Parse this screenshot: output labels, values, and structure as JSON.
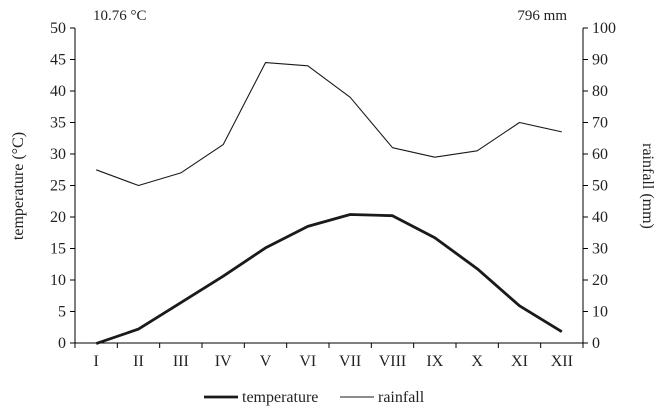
{
  "chart_data": {
    "type": "line",
    "categories": [
      "I",
      "II",
      "III",
      "IV",
      "V",
      "VI",
      "VII",
      "VIII",
      "IX",
      "X",
      "XI",
      "XII"
    ],
    "series": [
      {
        "name": "temperature",
        "axis": "left",
        "color": "#1a1a1a",
        "values": [
          -0.1,
          2.2,
          6.4,
          10.6,
          15.1,
          18.5,
          20.4,
          20.2,
          16.7,
          11.8,
          5.9,
          1.8
        ]
      },
      {
        "name": "rainfall",
        "axis": "right",
        "color": "#1a1a1a",
        "values": [
          55,
          50,
          54,
          63,
          89,
          88,
          78,
          62,
          59,
          61,
          70,
          67
        ]
      }
    ],
    "ylabel": "temperature (°C)",
    "y2label": "rainfall (mm)",
    "ylim": [
      0,
      50
    ],
    "y2lim": [
      0,
      100
    ],
    "yticks": [
      0,
      5,
      10,
      15,
      20,
      25,
      30,
      35,
      40,
      45,
      50
    ],
    "y2ticks": [
      0,
      10,
      20,
      30,
      40,
      50,
      60,
      70,
      80,
      90,
      100
    ],
    "annotations": {
      "mean_temperature": "10.76 °C",
      "annual_rainfall": "796 mm"
    },
    "legend": "bottom-center",
    "grid": false
  }
}
